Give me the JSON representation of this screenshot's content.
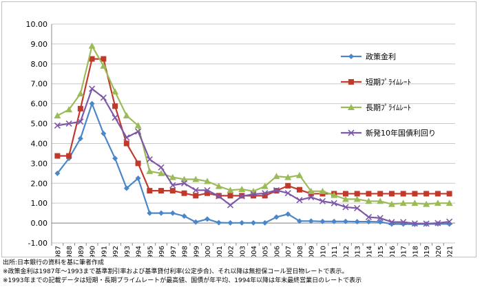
{
  "chart_data": {
    "type": "line",
    "x": [
      "1987",
      "1988",
      "1989",
      "1990",
      "1991",
      "1992",
      "1993",
      "1994",
      "1995",
      "1996",
      "1997",
      "1998",
      "1999",
      "2000",
      "2001",
      "2002",
      "2003",
      "2004",
      "2005",
      "2006",
      "2007",
      "2008",
      "2009",
      "2010",
      "2011",
      "2012",
      "2013",
      "2014",
      "2015",
      "2016",
      "2017",
      "2018",
      "2019",
      "2020",
      "2021"
    ],
    "ylim": [
      -1.0,
      10.0
    ],
    "yticks": [
      "-1.00",
      "0.00",
      "1.00",
      "2.00",
      "3.00",
      "4.00",
      "5.00",
      "6.00",
      "7.00",
      "8.00",
      "9.00",
      "10.00"
    ],
    "grid": true,
    "legend_position": "right",
    "series": [
      {
        "name": "政策金利",
        "color": "#4a86c8",
        "marker": "diamond",
        "values": [
          2.5,
          3.25,
          4.25,
          6.0,
          4.5,
          3.25,
          1.75,
          2.25,
          0.5,
          0.5,
          0.5,
          0.35,
          0.05,
          0.2,
          0.02,
          0.01,
          0.01,
          0.01,
          0.01,
          0.3,
          0.45,
          0.1,
          0.1,
          0.08,
          0.08,
          0.08,
          0.07,
          0.07,
          0.06,
          -0.05,
          -0.05,
          -0.06,
          -0.05,
          -0.04,
          -0.05
        ]
      },
      {
        "name": "短期ﾌﾟﾗｲﾑﾚｰﾄ",
        "color": "#c0392b",
        "marker": "square",
        "values": [
          3.375,
          3.375,
          5.75,
          8.25,
          8.25,
          5.875,
          4.0,
          3.0,
          1.625,
          1.625,
          1.625,
          1.5,
          1.375,
          1.5,
          1.375,
          1.375,
          1.375,
          1.375,
          1.375,
          1.625,
          1.875,
          1.675,
          1.475,
          1.475,
          1.475,
          1.475,
          1.475,
          1.475,
          1.475,
          1.475,
          1.475,
          1.475,
          1.475,
          1.475,
          1.475
        ]
      },
      {
        "name": "長期ﾌﾟﾗｲﾑﾚｰﾄ",
        "color": "#9bbb59",
        "marker": "triangle",
        "values": [
          5.4,
          5.7,
          6.5,
          8.9,
          7.9,
          6.6,
          5.4,
          4.9,
          2.6,
          2.5,
          2.3,
          2.2,
          2.2,
          2.1,
          1.85,
          1.65,
          1.7,
          1.6,
          1.85,
          2.35,
          2.3,
          2.4,
          1.6,
          1.6,
          1.4,
          1.2,
          1.2,
          1.1,
          1.1,
          0.95,
          1.0,
          1.0,
          0.95,
          1.0,
          1.0
        ]
      },
      {
        "name": "新発10年国債利回り",
        "color": "#7e57a8",
        "marker": "x",
        "values": [
          4.9,
          5.0,
          5.1,
          6.75,
          6.3,
          5.3,
          4.3,
          4.6,
          3.2,
          2.8,
          1.9,
          2.0,
          1.65,
          1.65,
          1.35,
          0.9,
          1.35,
          1.45,
          1.5,
          1.65,
          1.5,
          1.15,
          1.3,
          1.1,
          1.0,
          0.8,
          0.75,
          0.3,
          0.25,
          0.05,
          0.05,
          -0.02,
          -0.03,
          0.0,
          0.07
        ]
      }
    ]
  },
  "notes": [
    "出所:日本銀行の資料を基に筆者作成",
    "※政策金利は1987年〜1993まで基準割引率および基準貸付利率(公定歩合)、それ以降は無担保コール翌日物レートで表示。",
    "※1993年までの記載データは短期・長期プライムレートが最高値、国債が年平均、1994年以降は年末最終営業日のレートで表示"
  ]
}
